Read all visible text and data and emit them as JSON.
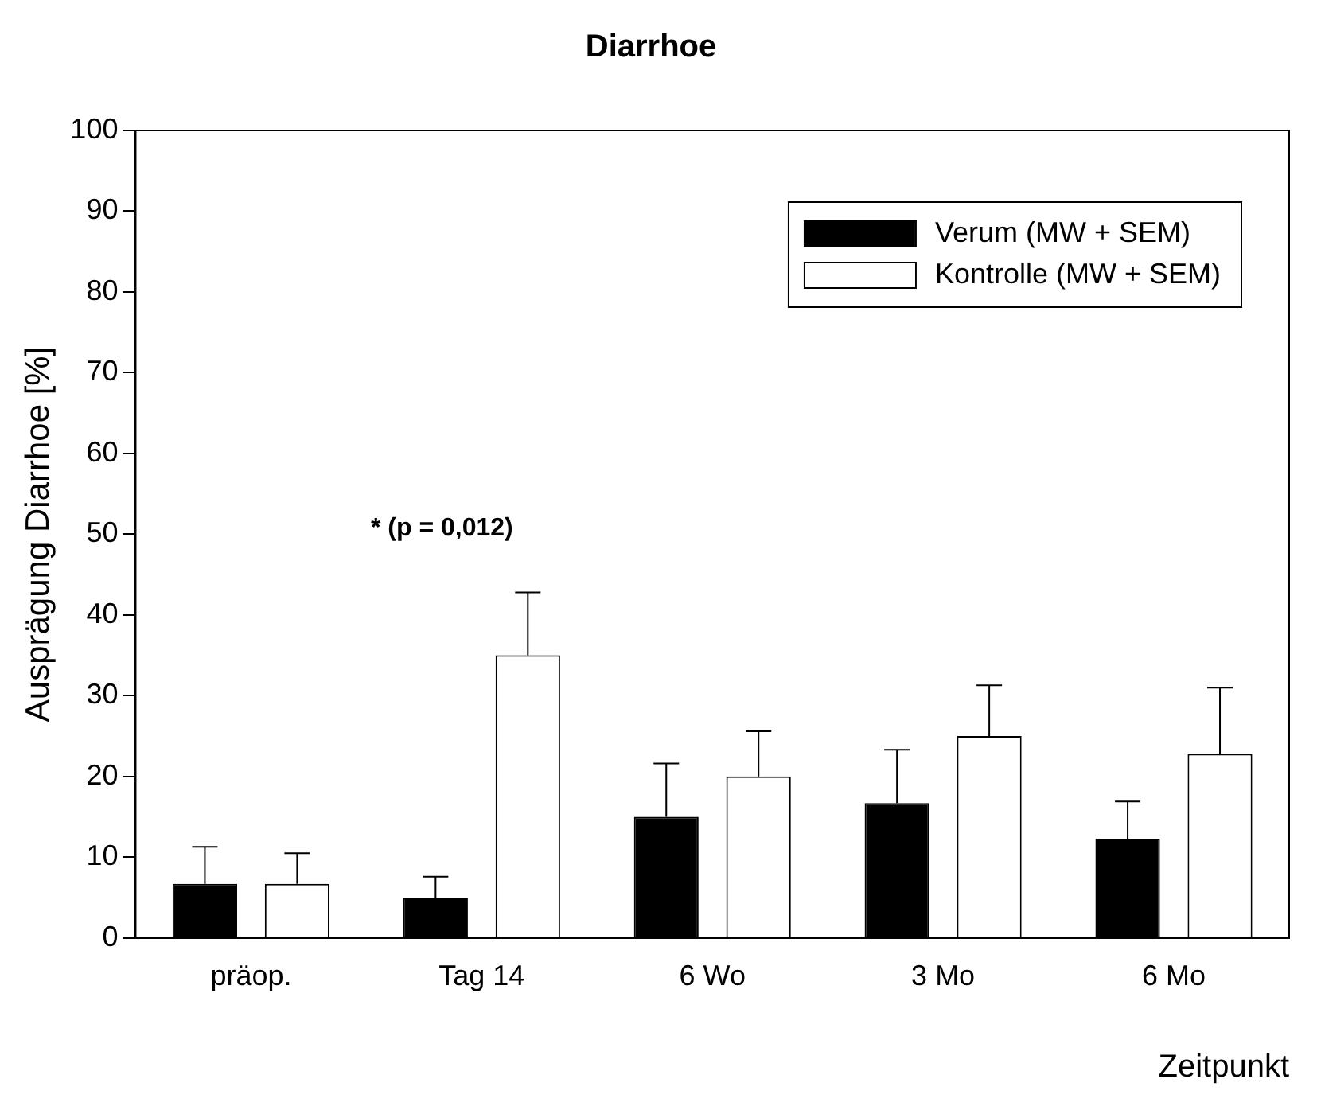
{
  "chart_data": {
    "type": "bar",
    "title": "Diarrhoe",
    "xlabel": "Zeitpunkt",
    "ylabel": "Ausprägung Diarrhoe [%]",
    "categories": [
      "präop.",
      "Tag 14",
      "6 Wo",
      "3 Mo",
      "6 Mo"
    ],
    "series": [
      {
        "name": "Verum (MW + SEM)",
        "color": "#000000",
        "values": [
          6.7,
          5,
          15,
          16.7,
          12.3
        ],
        "errors": [
          [
            6.7,
            11.3
          ],
          [
            5,
            7.6
          ],
          [
            15,
            21.6
          ],
          [
            16.7,
            23.3
          ],
          [
            12.3,
            16.9
          ]
        ]
      },
      {
        "name": "Kontrolle (MW + SEM)",
        "color": "#ffffff",
        "values": [
          6.7,
          35,
          20,
          25,
          22.8
        ],
        "errors": [
          [
            6.7,
            10.5
          ],
          [
            35,
            42.8
          ],
          [
            20,
            25.6
          ],
          [
            25,
            31.3
          ],
          [
            22.8,
            31
          ]
        ]
      }
    ],
    "annotations": [
      "* (p = 0,012)"
    ],
    "ylim": [
      0,
      100
    ],
    "yticks": [
      0,
      10,
      20,
      30,
      40,
      50,
      60,
      70,
      80,
      90,
      100
    ],
    "grid": false,
    "legend": "top right"
  }
}
